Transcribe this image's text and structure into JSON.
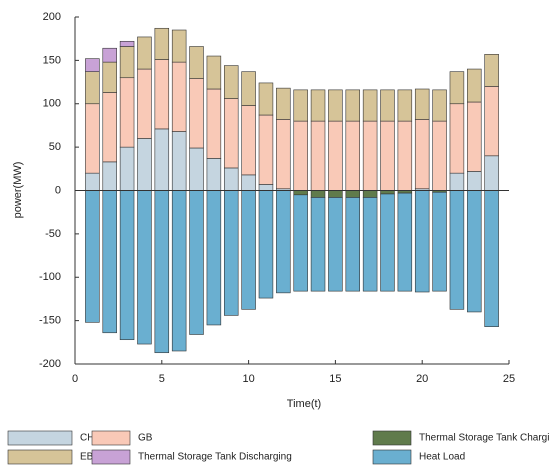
{
  "chart_data": {
    "type": "bar",
    "stacked": true,
    "x_label": "Time(t)",
    "y_label": "power(MW)",
    "x": [
      1,
      2,
      3,
      4,
      5,
      6,
      7,
      8,
      9,
      10,
      11,
      12,
      13,
      14,
      15,
      16,
      17,
      18,
      19,
      20,
      21,
      22,
      23,
      24
    ],
    "xlim": [
      0,
      25
    ],
    "xticks": [
      0,
      5,
      10,
      15,
      20,
      25
    ],
    "ylim": [
      -200,
      200
    ],
    "yticks": [
      200,
      150,
      100,
      50,
      0,
      -50,
      -100,
      -150,
      -200
    ],
    "series": [
      {
        "name": "CHP",
        "color": "#c5d5e0",
        "values": [
          20,
          33,
          50,
          60,
          71,
          68,
          49,
          37,
          26,
          18,
          7,
          2,
          0,
          0,
          0,
          0,
          0,
          0,
          0,
          2,
          0,
          20,
          22,
          40
        ]
      },
      {
        "name": "GB",
        "color": "#f9c9b7",
        "values": [
          80,
          80,
          80,
          80,
          80,
          80,
          80,
          80,
          80,
          80,
          80,
          80,
          80,
          80,
          80,
          80,
          80,
          80,
          80,
          80,
          80,
          80,
          80,
          80
        ]
      },
      {
        "name": "EB",
        "color": "#d6c498",
        "values": [
          37,
          35,
          36,
          37,
          36,
          37,
          37,
          38,
          38,
          39,
          37,
          36,
          36,
          36,
          36,
          36,
          36,
          36,
          36,
          35,
          36,
          37,
          38,
          37
        ]
      },
      {
        "name": "Thermal Storage Tank Discharging",
        "color": "#c8a2d6",
        "values": [
          15,
          16,
          6,
          0,
          0,
          0,
          0,
          0,
          0,
          0,
          0,
          0,
          0,
          0,
          0,
          0,
          0,
          0,
          0,
          0,
          0,
          0,
          0,
          0
        ]
      },
      {
        "name": "Thermal Storage Tank Charging",
        "color": "#607b4c",
        "values": [
          0,
          0,
          0,
          0,
          0,
          0,
          0,
          0,
          0,
          0,
          0,
          0,
          -5,
          -8,
          -8,
          -8,
          -8,
          -4,
          -3,
          0,
          -2,
          0,
          0,
          0
        ]
      },
      {
        "name": "Heat Load",
        "color": "#6aafd0",
        "values": [
          -152,
          -164,
          -172,
          -177,
          -187,
          -185,
          -166,
          -155,
          -144,
          -137,
          -124,
          -118,
          -111,
          -108,
          -108,
          -108,
          -108,
          -112,
          -113,
          -117,
          -114,
          -137,
          -140,
          -157
        ]
      }
    ]
  }
}
